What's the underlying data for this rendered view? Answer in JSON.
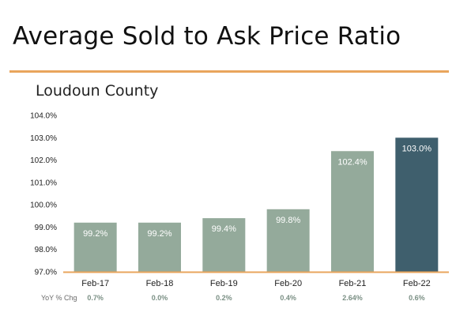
{
  "page": {
    "title": "Average Sold to Ask Price Ratio"
  },
  "colors": {
    "accent_rule": "#e9a55c",
    "bar_default": "#94aa9b",
    "bar_highlight": "#3f5f6d",
    "axis_line": "#e9a55c"
  },
  "chart_data": {
    "type": "bar",
    "title": "Loudoun County",
    "categories": [
      "Feb-17",
      "Feb-18",
      "Feb-19",
      "Feb-20",
      "Feb-21",
      "Feb-22"
    ],
    "values": [
      99.2,
      99.2,
      99.4,
      99.8,
      102.4,
      103.0
    ],
    "data_labels": [
      "99.2%",
      "99.2%",
      "99.4%",
      "99.8%",
      "102.4%",
      "103.0%"
    ],
    "highlight_index": 5,
    "ylim": [
      97.0,
      104.0
    ],
    "yticks": [
      97.0,
      98.0,
      99.0,
      100.0,
      101.0,
      102.0,
      103.0,
      104.0
    ],
    "ytick_labels": [
      "97.0%",
      "98.0%",
      "99.0%",
      "100.0%",
      "101.0%",
      "102.0%",
      "103.0%",
      "104.0%"
    ],
    "xlabel": "",
    "ylabel": "",
    "grid": false,
    "legend": "none",
    "yoy": {
      "label": "YoY % Chg",
      "values": [
        "0.7%",
        "0.0%",
        "0.2%",
        "0.4%",
        "2.64%",
        "0.6%"
      ]
    }
  }
}
